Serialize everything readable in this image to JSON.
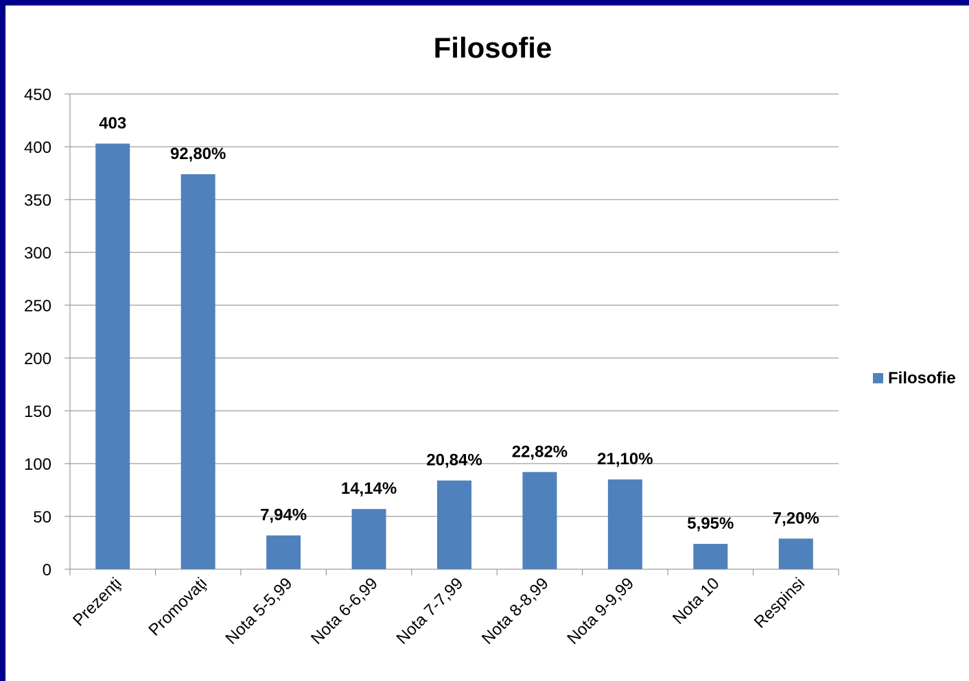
{
  "chart_data": {
    "type": "bar",
    "title": "Filosofie",
    "categories": [
      "Prezenţi",
      "Promovaţi",
      "Nota 5-5,99",
      "Nota 6-6,99",
      "Nota 7-7,99",
      "Nota 8-8,99",
      "Nota 9-9,99",
      "Nota 10",
      "Respinsi"
    ],
    "series": [
      {
        "name": "Filosofie",
        "color": "#4f81bd",
        "values": [
          403,
          374,
          32,
          57,
          84,
          92,
          85,
          24,
          29
        ],
        "data_labels": [
          "403",
          "92,80%",
          "7,94%",
          "14,14%",
          "20,84%",
          "22,82%",
          "21,10%",
          "5,95%",
          "7,20%"
        ]
      }
    ],
    "ylim": [
      0,
      450
    ],
    "yticks": [
      "0",
      "50",
      "100",
      "150",
      "200",
      "250",
      "300",
      "350",
      "400",
      "450"
    ],
    "grid": true,
    "legend": "right"
  }
}
